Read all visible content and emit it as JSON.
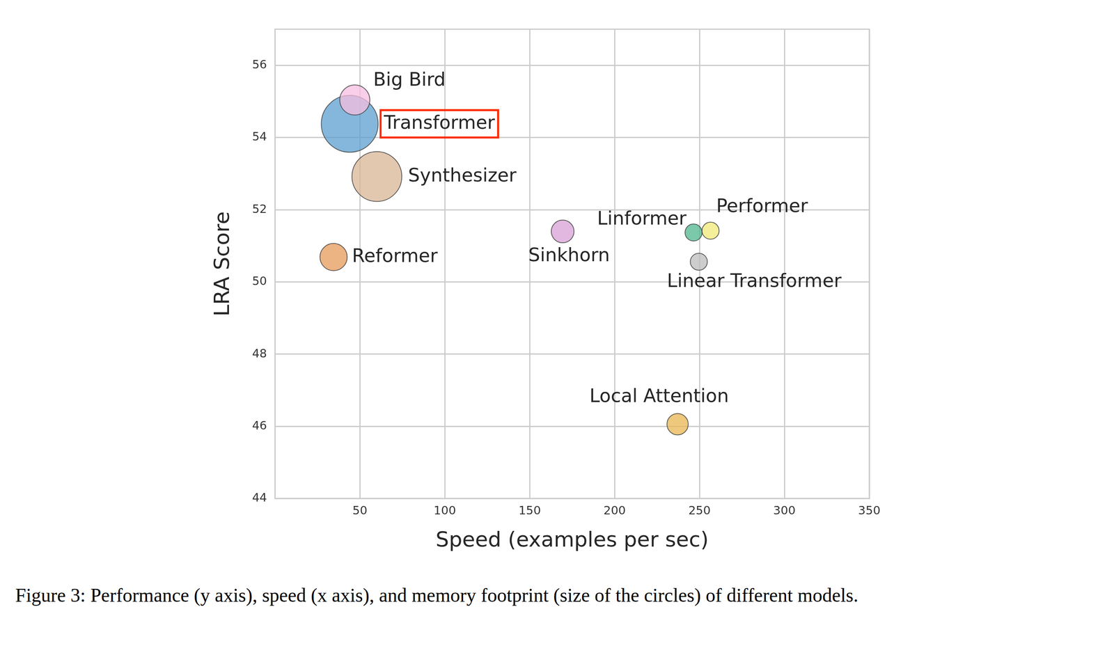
{
  "chart_data": {
    "type": "bubble",
    "caption": "Figure 3: Performance (y axis), speed (x axis), and memory footprint (size of the circles) of different models.",
    "x_label": "Speed (examples per sec)",
    "y_label": "LRA Score",
    "xlim": [
      0,
      350
    ],
    "xticks": [
      50,
      100,
      150,
      200,
      250,
      300,
      350
    ],
    "ylim": [
      44,
      57
    ],
    "yticks": [
      44,
      46,
      48,
      50,
      52,
      54,
      56
    ],
    "grid": true,
    "points": [
      {
        "name": "Transformer",
        "x": 44,
        "y": 54.38,
        "size": 1.0,
        "color": "#5b9fcf",
        "highlight": true
      },
      {
        "name": "Big Bird",
        "x": 47,
        "y": 55.04,
        "size": 0.28,
        "color": "#f7bde0"
      },
      {
        "name": "Synthesizer",
        "x": 60,
        "y": 52.92,
        "size": 0.77,
        "color": "#d9b596"
      },
      {
        "name": "Reformer",
        "x": 34.5,
        "y": 50.69,
        "size": 0.23,
        "color": "#e69a5a"
      },
      {
        "name": "Sinkhorn",
        "x": 169.4,
        "y": 51.4,
        "size": 0.16,
        "color": "#d9a0d6"
      },
      {
        "name": "Linformer",
        "x": 246.5,
        "y": 51.37,
        "size": 0.09,
        "color": "#4fb58f"
      },
      {
        "name": "Performer",
        "x": 256.5,
        "y": 51.42,
        "size": 0.09,
        "color": "#f2ea78"
      },
      {
        "name": "Linear Transformer",
        "x": 249.6,
        "y": 50.56,
        "size": 0.09,
        "color": "#bcbcbc"
      },
      {
        "name": "Local Attention",
        "x": 237.1,
        "y": 46.06,
        "size": 0.14,
        "color": "#e8b550"
      }
    ]
  }
}
